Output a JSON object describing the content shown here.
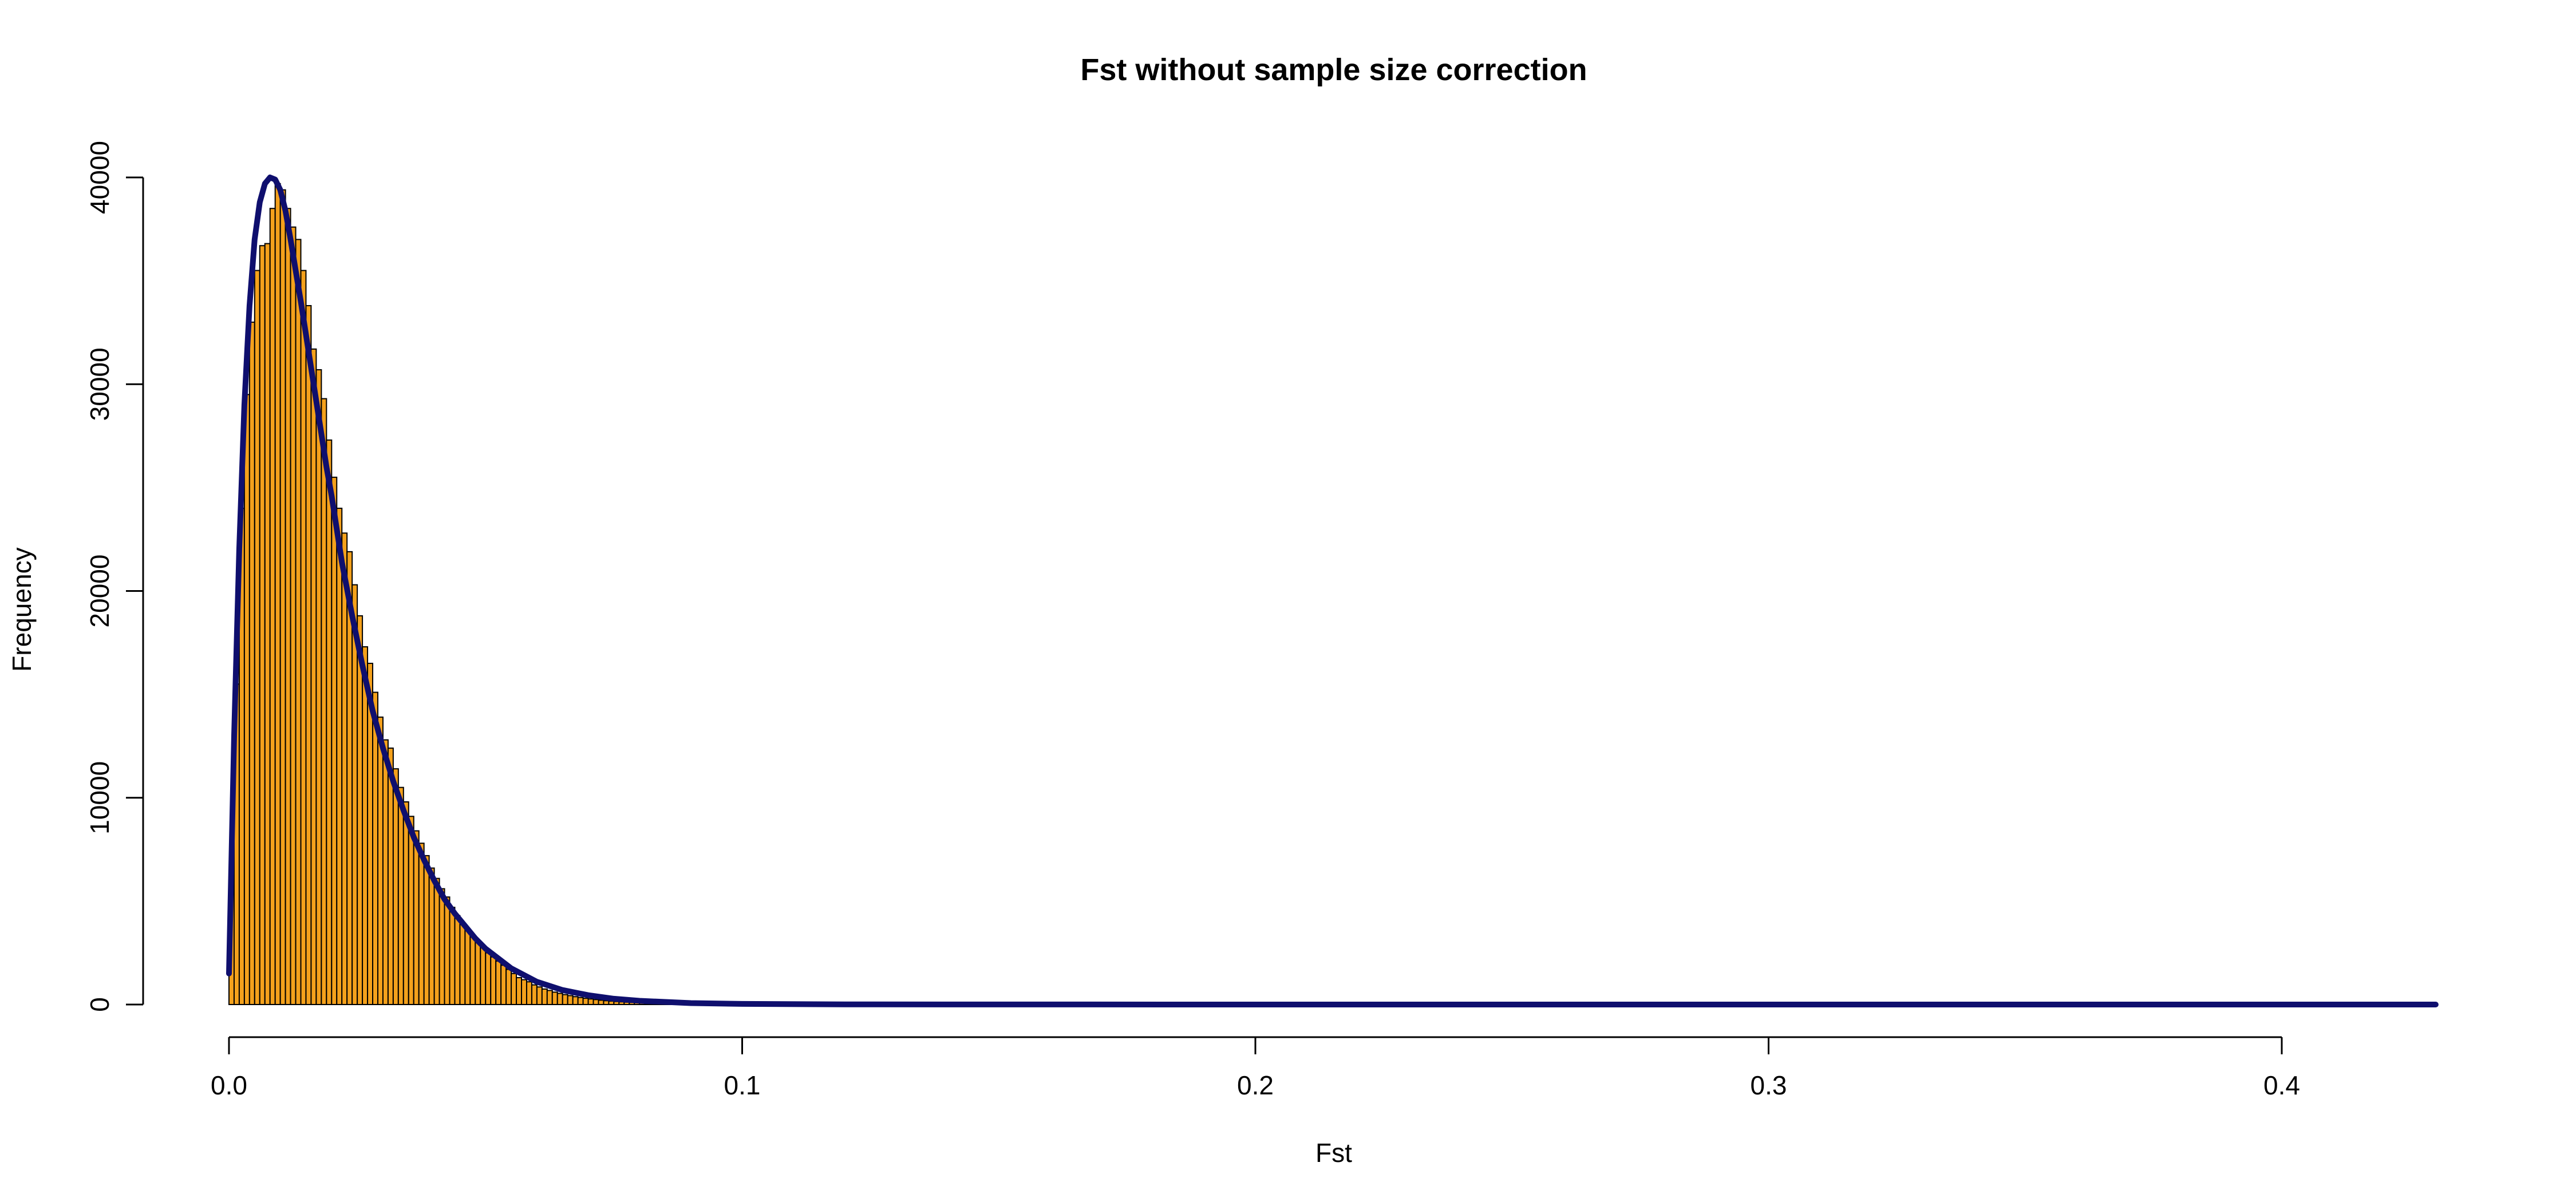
{
  "chart_data": {
    "type": "bar",
    "title": "Fst without sample size correction",
    "xlabel": "Fst",
    "ylabel": "Frequency",
    "xlim": [
      0,
      0.43
    ],
    "ylim": [
      0,
      40000
    ],
    "x_ticks": [
      0.0,
      0.1,
      0.2,
      0.3,
      0.4
    ],
    "x_tick_labels": [
      "0.0",
      "0.1",
      "0.2",
      "0.3",
      "0.4"
    ],
    "y_ticks": [
      0,
      10000,
      20000,
      30000,
      40000
    ],
    "y_tick_labels": [
      "0",
      "10000",
      "20000",
      "30000",
      "40000"
    ],
    "bin_width": 0.001,
    "bin_start": 0.0,
    "bin_values": [
      6200,
      15500,
      24000,
      29500,
      33000,
      35500,
      36700,
      36800,
      38500,
      39700,
      39400,
      38500,
      37600,
      37000,
      35500,
      33800,
      31700,
      30700,
      29300,
      27300,
      25500,
      24000,
      22800,
      21900,
      20300,
      18800,
      17300,
      16500,
      15100,
      13900,
      12800,
      12400,
      11400,
      10500,
      9800,
      9100,
      8400,
      7800,
      7200,
      6600,
      6100,
      5600,
      5200,
      4700,
      4300,
      3900,
      3600,
      3300,
      3000,
      2800,
      2500,
      2300,
      2100,
      1900,
      1700,
      1500,
      1300,
      1200,
      1100,
      950,
      850,
      750,
      680,
      600,
      540,
      480,
      430,
      380,
      340,
      300,
      270,
      240,
      210,
      185,
      165,
      145,
      130,
      115,
      100,
      90,
      80,
      70,
      62,
      55,
      48,
      42,
      37,
      33,
      29,
      26,
      23,
      20,
      18,
      16,
      14,
      12,
      11,
      10,
      9,
      8,
      7,
      6,
      5
    ],
    "fitted_curve": {
      "label": "",
      "color": "#0f0f6e",
      "x": [
        0.0,
        0.001,
        0.002,
        0.003,
        0.004,
        0.005,
        0.006,
        0.007,
        0.008,
        0.009,
        0.01,
        0.011,
        0.012,
        0.013,
        0.014,
        0.015,
        0.016,
        0.017,
        0.018,
        0.019,
        0.02,
        0.022,
        0.024,
        0.026,
        0.028,
        0.03,
        0.032,
        0.034,
        0.036,
        0.038,
        0.04,
        0.042,
        0.044,
        0.046,
        0.048,
        0.05,
        0.055,
        0.06,
        0.065,
        0.07,
        0.075,
        0.08,
        0.09,
        0.1,
        0.12,
        0.15,
        0.2,
        0.3,
        0.43
      ],
      "y": [
        1500,
        13000,
        22000,
        29000,
        33800,
        37000,
        38800,
        39700,
        40000,
        39900,
        39400,
        38400,
        37000,
        35500,
        34000,
        32400,
        30800,
        29200,
        27600,
        26000,
        24600,
        21400,
        18800,
        16400,
        14200,
        12400,
        10800,
        9400,
        8100,
        7000,
        6000,
        5100,
        4400,
        3800,
        3200,
        2700,
        1750,
        1100,
        700,
        450,
        280,
        180,
        70,
        30,
        8,
        2,
        0,
        0,
        0
      ]
    },
    "bar_fill": "#f4a11c",
    "bar_stroke": "#000000",
    "grid": false,
    "legend": "none"
  }
}
